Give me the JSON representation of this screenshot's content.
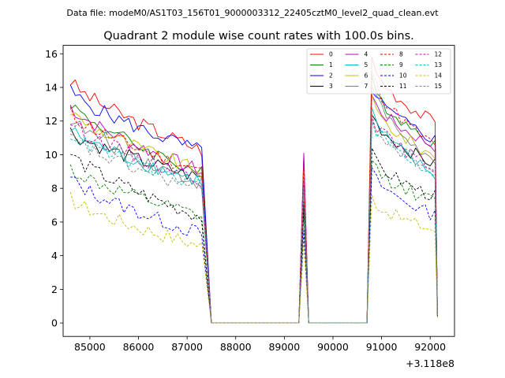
{
  "chart_data": {
    "type": "line",
    "suptitle": "Data file: modeM0/AS1T03_156T01_9000003312_22405cztM0_level2_quad_clean.evt",
    "title": "Quadrant 2 module wise count rates with 100.0s bins.",
    "xlabel": "",
    "ylabel": "",
    "x_offset_label": "+3.118e8",
    "xlim": [
      84450,
      92500
    ],
    "ylim": [
      -0.8,
      16.5
    ],
    "x_ticks": [
      85000,
      86000,
      87000,
      88000,
      89000,
      90000,
      91000,
      92000
    ],
    "x_tick_labels": [
      "85000",
      "86000",
      "87000",
      "88000",
      "89000",
      "90000",
      "91000",
      "92000"
    ],
    "y_ticks": [
      0,
      2,
      4,
      6,
      8,
      10,
      12,
      14,
      16
    ],
    "y_tick_labels": [
      "0",
      "2",
      "4",
      "6",
      "8",
      "10",
      "12",
      "14",
      "16"
    ],
    "segments": [
      {
        "start": 84600,
        "end": 87300,
        "count": 28
      },
      {
        "start": 87500,
        "end": 89200,
        "count": 18
      },
      {
        "start": 89300,
        "end": 89500,
        "count": 3
      },
      {
        "start": 89600,
        "end": 90700,
        "count": 12
      },
      {
        "start": 90800,
        "end": 92100,
        "count": 14
      },
      {
        "start": 92150,
        "end": 92150,
        "count": 1
      }
    ],
    "legend": [
      "0",
      "1",
      "2",
      "3",
      "4",
      "5",
      "6",
      "7",
      "8",
      "9",
      "10",
      "11",
      "12",
      "13",
      "14",
      "15"
    ],
    "series": [
      {
        "name": "0",
        "color": "#ff0000",
        "style": "solid",
        "a": 14.4,
        "b": 10.3,
        "peak": 10.0,
        "c": 15.6,
        "d": 11.9,
        "end": 0.6
      },
      {
        "name": "1",
        "color": "#008000",
        "style": "solid",
        "a": 13.1,
        "b": 8.9,
        "peak": 9.5,
        "c": 14.4,
        "d": 10.7,
        "end": 0.5
      },
      {
        "name": "2",
        "color": "#0000ff",
        "style": "solid",
        "a": 13.8,
        "b": 10.2,
        "peak": 9.7,
        "c": 14.0,
        "d": 10.9,
        "end": 0.5
      },
      {
        "name": "3",
        "color": "#000000",
        "style": "solid",
        "a": 11.4,
        "b": 8.6,
        "peak": 7.2,
        "c": 12.5,
        "d": 9.4,
        "end": 0.5
      },
      {
        "name": "4",
        "color": "#bf00bf",
        "style": "solid",
        "a": 12.9,
        "b": 9.0,
        "peak": 10.1,
        "c": 13.5,
        "d": 10.5,
        "end": 0.5
      },
      {
        "name": "5",
        "color": "#00bfbf",
        "style": "solid",
        "a": 11.5,
        "b": 8.4,
        "peak": 8.7,
        "c": 12.6,
        "d": 8.8,
        "end": 0.4
      },
      {
        "name": "6",
        "color": "#bfbf00",
        "style": "solid",
        "a": 12.6,
        "b": 9.0,
        "peak": 9.1,
        "c": 13.2,
        "d": 9.9,
        "end": 0.5
      },
      {
        "name": "7",
        "color": "#808080",
        "style": "solid",
        "a": 12.2,
        "b": 8.3,
        "peak": 8.3,
        "c": 14.3,
        "d": 9.5,
        "end": 0.5
      },
      {
        "name": "8",
        "color": "#ff0000",
        "style": "dashed",
        "a": 12.5,
        "b": 9.0,
        "peak": 9.3,
        "c": 15.0,
        "d": 10.5,
        "end": 0.5
      },
      {
        "name": "9",
        "color": "#008000",
        "style": "dashed",
        "a": 9.2,
        "b": 6.3,
        "peak": 6.6,
        "c": 9.6,
        "d": 7.2,
        "end": 0.4
      },
      {
        "name": "10",
        "color": "#0000ff",
        "style": "dashed",
        "a": 8.6,
        "b": 5.3,
        "peak": 5.5,
        "c": 9.0,
        "d": 6.4,
        "end": 0.4
      },
      {
        "name": "11",
        "color": "#000000",
        "style": "dashed",
        "a": 10.1,
        "b": 6.3,
        "peak": 6.9,
        "c": 10.0,
        "d": 7.5,
        "end": 0.4
      },
      {
        "name": "12",
        "color": "#bf00bf",
        "style": "dashed",
        "a": 12.0,
        "b": 8.5,
        "peak": 8.5,
        "c": 12.4,
        "d": 9.2,
        "end": 0.5
      },
      {
        "name": "13",
        "color": "#00bfbf",
        "style": "dashed",
        "a": 11.3,
        "b": 8.2,
        "peak": 8.0,
        "c": 12.1,
        "d": 8.9,
        "end": 0.5
      },
      {
        "name": "14",
        "color": "#bfbf00",
        "style": "dashed",
        "a": 7.4,
        "b": 4.6,
        "peak": 4.8,
        "c": 7.5,
        "d": 5.5,
        "end": 0.3
      },
      {
        "name": "15",
        "color": "#808080",
        "style": "dashed",
        "a": 11.0,
        "b": 7.9,
        "peak": 7.9,
        "c": 12.2,
        "d": 9.0,
        "end": 0.5
      }
    ]
  }
}
